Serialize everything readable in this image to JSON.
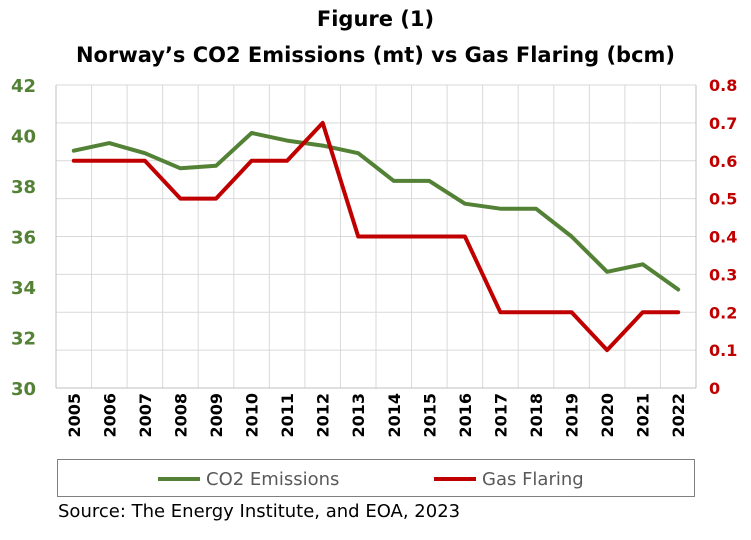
{
  "title": {
    "line1": "Figure (1)",
    "line2": "Norway’s CO2 Emissions (mt) vs Gas Flaring (bcm)"
  },
  "source": "Source: The Energy Institute, and EOA, 2023",
  "colors": {
    "co2": "#538135",
    "flaring": "#C00000",
    "left_axis_text": "#538135",
    "right_axis_text": "#C00000",
    "grid": "#d9d9d9"
  },
  "chart_data": {
    "type": "line",
    "title": "Figure (1) Norway’s CO2 Emissions (mt) vs Gas Flaring (bcm)",
    "categories": [
      "2005",
      "2006",
      "2007",
      "2008",
      "2009",
      "2010",
      "2011",
      "2012",
      "2013",
      "2014",
      "2015",
      "2016",
      "2017",
      "2018",
      "2019",
      "2020",
      "2021",
      "2022"
    ],
    "series": [
      {
        "name": "CO2 Emissions",
        "axis": "left",
        "color": "#538135",
        "values": [
          39.4,
          39.7,
          39.3,
          38.7,
          38.8,
          40.1,
          39.8,
          39.6,
          39.3,
          38.2,
          38.2,
          37.3,
          37.1,
          37.1,
          36.0,
          34.6,
          34.9,
          33.9
        ]
      },
      {
        "name": "Gas Flaring",
        "axis": "right",
        "color": "#C00000",
        "step": true,
        "values": [
          0.6,
          0.6,
          0.6,
          0.5,
          0.5,
          0.6,
          0.6,
          0.7,
          0.4,
          0.4,
          0.4,
          0.4,
          0.2,
          0.2,
          0.2,
          0.1,
          0.2,
          0.2
        ]
      }
    ],
    "y_left": {
      "min": 30,
      "max": 42,
      "ticks": [
        "30",
        "32",
        "34",
        "36",
        "38",
        "40",
        "42"
      ]
    },
    "y_right": {
      "min": 0,
      "max": 0.8,
      "ticks": [
        "0",
        "0.1",
        "0.2",
        "0.3",
        "0.4",
        "0.5",
        "0.6",
        "0.7",
        "0.8"
      ]
    },
    "grid": true,
    "legend_position": "bottom"
  }
}
